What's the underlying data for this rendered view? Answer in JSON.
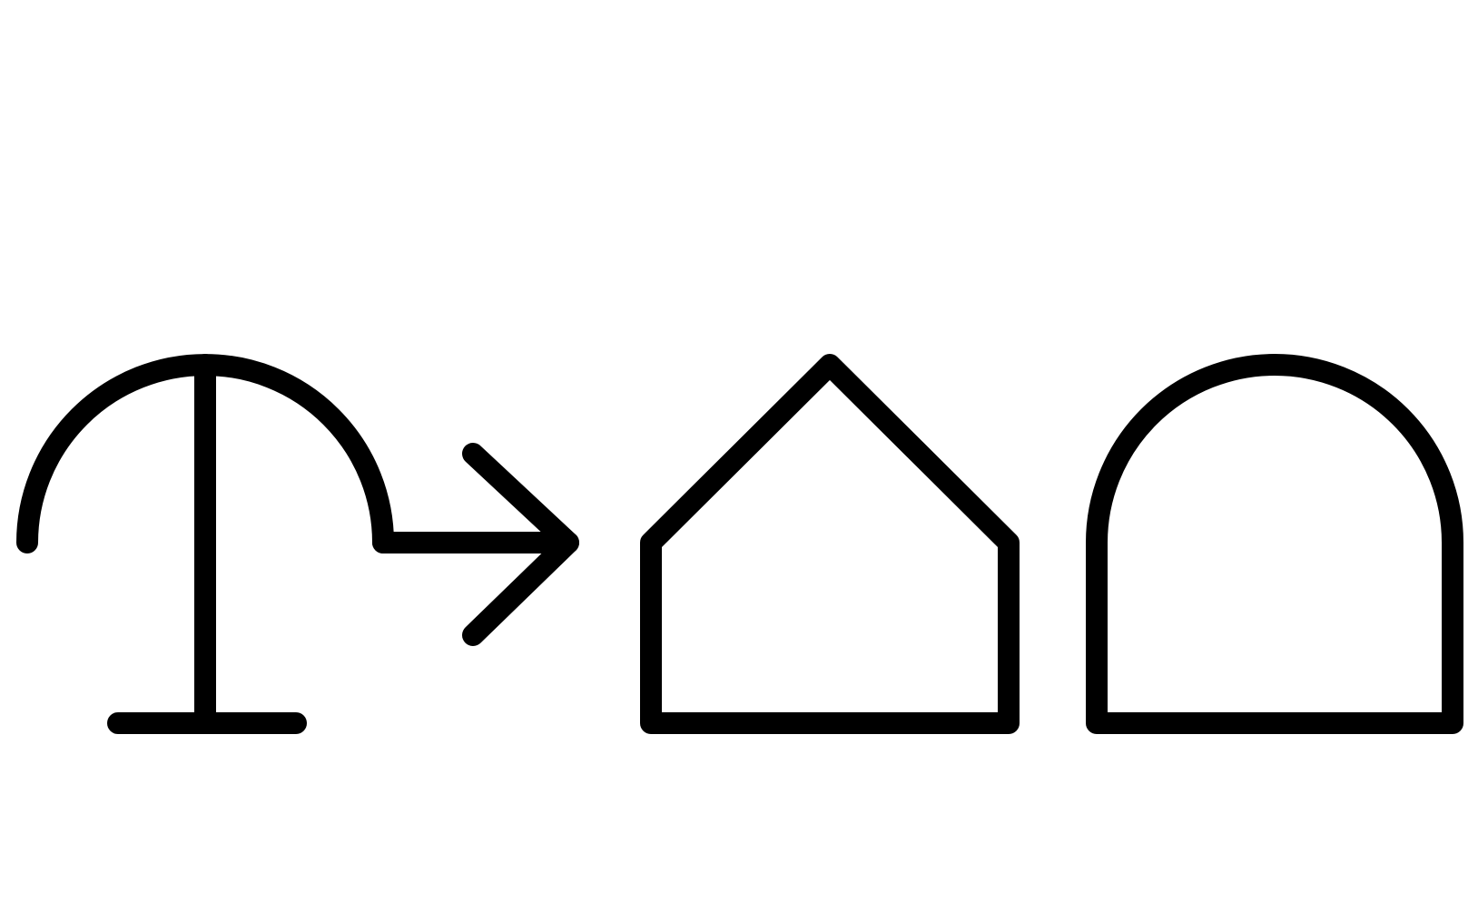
{
  "colors": {
    "background": "#ffffff",
    "stroke": "#000000"
  },
  "diagram": {
    "symbols": [
      {
        "name": "umbrella-arc-symbol",
        "icon": "arc-with-stand-icon"
      },
      {
        "name": "arrow",
        "icon": "right-arrow-icon"
      },
      {
        "name": "pentagon-house-shape",
        "icon": "house-outline-icon"
      },
      {
        "name": "arched-doorway-shape",
        "icon": "arch-outline-icon"
      }
    ]
  }
}
